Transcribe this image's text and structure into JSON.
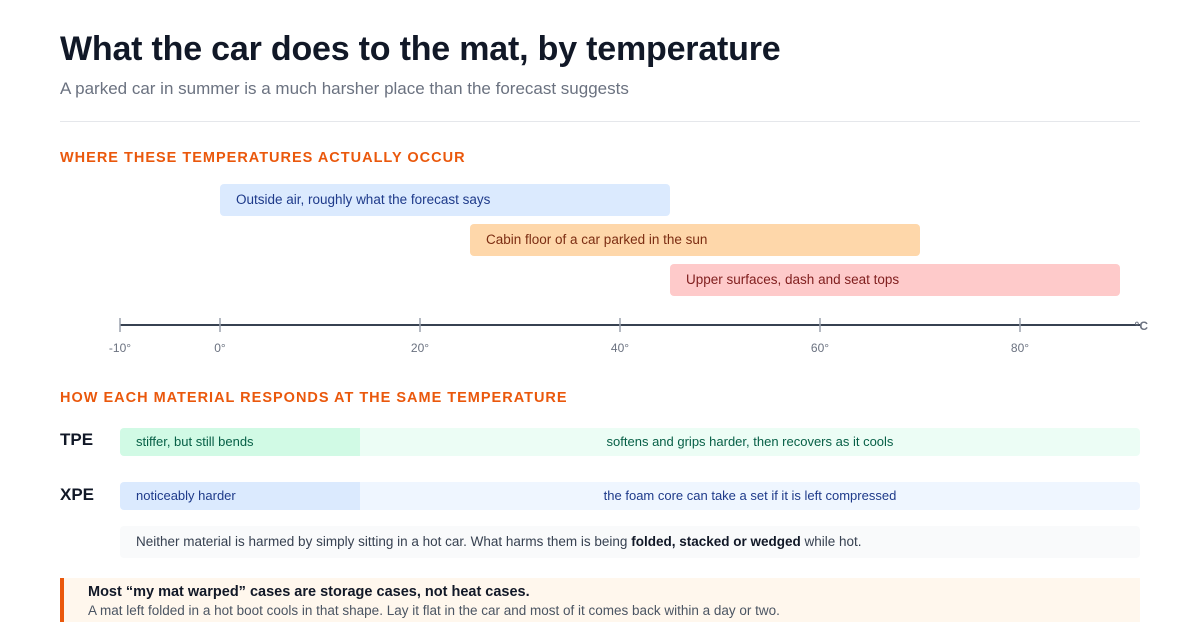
{
  "header": {
    "title": "What the car does to the mat, by temperature",
    "subtitle": "A parked car in summer is a much harsher place than the forecast suggests"
  },
  "ranges_section": {
    "heading": "WHERE THESE TEMPERATURES ACTUALLY OCCUR",
    "axis_unit": "°C",
    "axis_domain": [
      -10,
      92
    ],
    "ticks": [
      {
        "value": -10,
        "label": "-10°"
      },
      {
        "value": 0,
        "label": "0°"
      },
      {
        "value": 20,
        "label": "20°"
      },
      {
        "value": 40,
        "label": "40°"
      },
      {
        "value": 60,
        "label": "60°"
      },
      {
        "value": 80,
        "label": "80°"
      }
    ],
    "bands": [
      {
        "label": "Outside air, roughly what the forecast says",
        "from": 0,
        "to": 45,
        "fill": "#dbeafe",
        "text_color": "#1e3a8a"
      },
      {
        "label": "Cabin floor of a car parked in the sun",
        "from": 25,
        "to": 70,
        "fill": "#fed7aa",
        "text_color": "#7c2d12"
      },
      {
        "label": "Upper surfaces, dash and seat tops",
        "from": 45,
        "to": 90,
        "fill": "#fecaca",
        "text_color": "#7f1d1d"
      }
    ]
  },
  "materials_section": {
    "heading": "HOW EACH MATERIAL RESPONDS AT THE SAME TEMPERATURE",
    "materials": [
      {
        "name": "TPE",
        "cold": "stiffer, but still bends",
        "warm": "softens and grips harder, then recovers as it cools"
      },
      {
        "name": "XPE",
        "cold": "noticeably harder",
        "warm": "the foam core can take a set if it is left compressed"
      }
    ],
    "note_before": "Neither material is harmed by simply sitting in a hot car. What harms them is being ",
    "note_bold": "folded, stacked or wedged",
    "note_after": " while hot."
  },
  "callout": {
    "heading": "Most “my mat warped” cases are storage cases, not heat cases.",
    "body": "A mat left folded in a hot boot cools in that shape. Lay it flat in the car and most of it comes back within a day or two."
  },
  "colors": {
    "accent": "#ea580c",
    "axis": "#374151"
  }
}
